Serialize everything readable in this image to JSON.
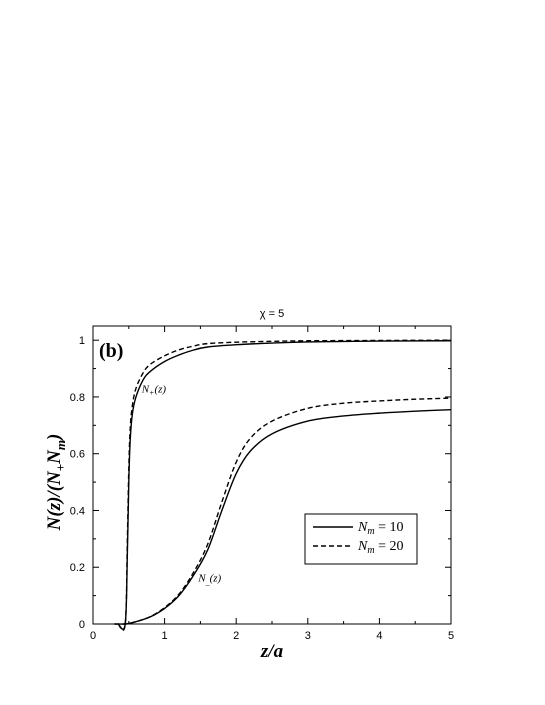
{
  "chart_data": {
    "type": "line",
    "title": "χ = 5",
    "panel_label": "(b)",
    "xlabel": "z/a",
    "ylabel": "N(z)/(N+Nm)",
    "xlim": [
      0,
      5
    ],
    "ylim": [
      0,
      1.05
    ],
    "xticks": [
      "0",
      "1",
      "2",
      "3",
      "4",
      "5"
    ],
    "yticks": [
      "0",
      "0.2",
      "0.4",
      "0.6",
      "0.8",
      "1"
    ],
    "grid": false,
    "legend_position": "center-right",
    "legend": [
      {
        "name": "N",
        "sub": "m",
        "rest": " = 10",
        "dash": "solid"
      },
      {
        "name": "N",
        "sub": "m",
        "rest": " = 20",
        "dash": "dashed"
      }
    ],
    "annotations": [
      {
        "main": "N",
        "sub": "+",
        "rest": "(z)",
        "x": 0.68,
        "y": 0.815
      },
      {
        "main": "N",
        "sub": "_",
        "rest": "(z)",
        "x": 1.47,
        "y": 0.15
      }
    ],
    "series": [
      {
        "style": "solid",
        "group": "plus",
        "x": [
          0.35,
          0.45,
          0.48,
          0.5,
          0.52,
          0.55,
          0.6,
          0.7,
          0.8,
          1.0,
          1.2,
          1.4,
          1.6,
          2.0,
          2.5,
          3.0,
          4.0,
          5.0
        ],
        "y": [
          0,
          0,
          0.25,
          0.5,
          0.65,
          0.74,
          0.8,
          0.86,
          0.89,
          0.925,
          0.948,
          0.965,
          0.976,
          0.984,
          0.99,
          0.994,
          0.997,
          0.998
        ]
      },
      {
        "style": "dashed",
        "group": "plus",
        "x": [
          0.35,
          0.45,
          0.48,
          0.5,
          0.52,
          0.55,
          0.6,
          0.7,
          0.8,
          1.0,
          1.2,
          1.4,
          1.6,
          2.0,
          2.5,
          3.0,
          4.0,
          5.0
        ],
        "y": [
          0,
          0,
          0.3,
          0.55,
          0.69,
          0.77,
          0.83,
          0.885,
          0.915,
          0.945,
          0.966,
          0.979,
          0.988,
          0.993,
          0.996,
          0.998,
          0.999,
          1.0
        ]
      },
      {
        "style": "solid",
        "group": "minus",
        "x": [
          0.3,
          0.45,
          0.5,
          0.6,
          0.8,
          1.0,
          1.2,
          1.4,
          1.6,
          1.8,
          2.0,
          2.2,
          2.5,
          3.0,
          3.5,
          4.0,
          4.5,
          5.0
        ],
        "y": [
          0,
          0,
          0.002,
          0.008,
          0.025,
          0.055,
          0.1,
          0.17,
          0.26,
          0.4,
          0.53,
          0.61,
          0.67,
          0.715,
          0.733,
          0.743,
          0.75,
          0.755
        ]
      },
      {
        "style": "dashed",
        "group": "minus",
        "x": [
          0.3,
          0.45,
          0.5,
          0.6,
          0.8,
          1.0,
          1.2,
          1.4,
          1.6,
          1.8,
          2.0,
          2.2,
          2.5,
          3.0,
          3.5,
          4.0,
          4.5,
          5.0
        ],
        "y": [
          0,
          0,
          0.002,
          0.008,
          0.026,
          0.058,
          0.105,
          0.18,
          0.28,
          0.43,
          0.57,
          0.655,
          0.715,
          0.76,
          0.778,
          0.786,
          0.792,
          0.796
        ]
      }
    ]
  }
}
